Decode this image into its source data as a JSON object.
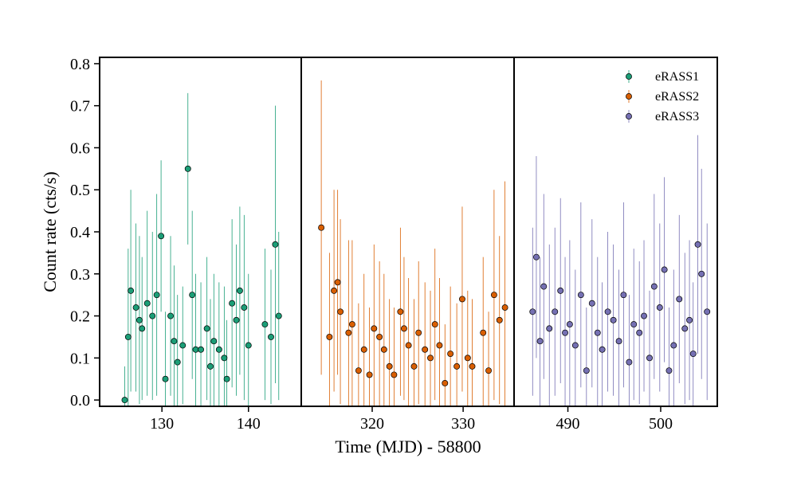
{
  "chart_data": {
    "type": "scatter",
    "xlabel": "Time (MJD) - 58800",
    "ylabel": "Count rate (cts/s)",
    "ylim": [
      -0.015,
      0.815
    ],
    "yticks": [
      0.0,
      0.1,
      0.2,
      0.3,
      0.4,
      0.5,
      0.6,
      0.7,
      0.8
    ],
    "ytick_labels": [
      "0.0",
      "0.1",
      "0.2",
      "0.3",
      "0.4",
      "0.5",
      "0.6",
      "0.7",
      "0.8"
    ],
    "legend_position": "top-right",
    "error_bars": true,
    "panels": [
      {
        "series": "eRASS1",
        "color": "#1b9e77",
        "xlim": [
          122.8,
          146.1
        ],
        "xticks": [
          130,
          140
        ],
        "xtick_labels": [
          "130",
          "140"
        ],
        "x": [
          125.7,
          126.1,
          126.4,
          127.0,
          127.4,
          127.7,
          128.3,
          128.9,
          129.4,
          129.9,
          130.4,
          131.0,
          131.4,
          131.8,
          132.4,
          133.0,
          133.5,
          133.9,
          134.5,
          135.2,
          135.6,
          136.0,
          136.6,
          137.2,
          137.5,
          138.1,
          138.6,
          139.0,
          139.5,
          140.0,
          141.9,
          142.6,
          143.1,
          143.5
        ],
        "y": [
          0.0,
          0.15,
          0.26,
          0.22,
          0.19,
          0.17,
          0.23,
          0.2,
          0.25,
          0.39,
          0.05,
          0.2,
          0.14,
          0.09,
          0.13,
          0.55,
          0.25,
          0.12,
          0.12,
          0.17,
          0.08,
          0.14,
          0.12,
          0.1,
          0.05,
          0.23,
          0.19,
          0.26,
          0.22,
          0.13,
          0.18,
          0.15,
          0.37,
          0.2
        ],
        "yerr": [
          0.08,
          0.21,
          0.24,
          0.2,
          0.2,
          0.17,
          0.22,
          0.2,
          0.24,
          0.18,
          0.16,
          0.19,
          0.18,
          0.16,
          0.14,
          0.18,
          0.2,
          0.18,
          0.16,
          0.17,
          0.16,
          0.16,
          0.16,
          0.17,
          0.14,
          0.2,
          0.18,
          0.2,
          0.22,
          0.17,
          0.18,
          0.16,
          0.33,
          0.2
        ]
      },
      {
        "series": "eRASS2",
        "color": "#d95f02",
        "xlim": [
          312.2,
          335.6
        ],
        "xticks": [
          320,
          330
        ],
        "xtick_labels": [
          "320",
          "330"
        ],
        "x": [
          314.4,
          315.3,
          315.8,
          316.2,
          316.5,
          317.4,
          317.8,
          318.5,
          319.1,
          319.7,
          320.2,
          320.8,
          321.3,
          321.9,
          322.4,
          323.1,
          323.5,
          324.0,
          324.6,
          325.1,
          325.8,
          326.4,
          326.9,
          327.4,
          328.0,
          328.6,
          329.3,
          329.9,
          330.5,
          331.0,
          332.2,
          332.8,
          333.4,
          334.0,
          334.6
        ],
        "y": [
          0.41,
          0.15,
          0.26,
          0.28,
          0.21,
          0.16,
          0.18,
          0.07,
          0.12,
          0.06,
          0.17,
          0.15,
          0.12,
          0.08,
          0.06,
          0.21,
          0.17,
          0.13,
          0.08,
          0.16,
          0.12,
          0.1,
          0.18,
          0.13,
          0.04,
          0.11,
          0.08,
          0.24,
          0.1,
          0.08,
          0.16,
          0.07,
          0.25,
          0.19,
          0.22
        ],
        "yerr": [
          0.35,
          0.2,
          0.24,
          0.22,
          0.22,
          0.22,
          0.2,
          0.16,
          0.18,
          0.16,
          0.2,
          0.18,
          0.18,
          0.16,
          0.16,
          0.2,
          0.17,
          0.16,
          0.16,
          0.17,
          0.16,
          0.16,
          0.18,
          0.16,
          0.14,
          0.16,
          0.15,
          0.22,
          0.16,
          0.16,
          0.18,
          0.14,
          0.25,
          0.2,
          0.3
        ]
      },
      {
        "series": "eRASS3",
        "color": "#7570b3",
        "xlim": [
          484.2,
          506.1
        ],
        "xticks": [
          490,
          500
        ],
        "xtick_labels": [
          "490",
          "500"
        ],
        "x": [
          486.2,
          486.6,
          487.0,
          487.4,
          488.0,
          488.6,
          489.2,
          489.7,
          490.2,
          490.8,
          491.4,
          492.0,
          492.6,
          493.2,
          493.7,
          494.3,
          494.9,
          495.5,
          496.0,
          496.6,
          497.1,
          497.7,
          498.2,
          498.8,
          499.3,
          499.9,
          500.4,
          500.9,
          501.4,
          502.0,
          502.6,
          503.1,
          503.5,
          504.0,
          504.4,
          505.0
        ],
        "y": [
          0.21,
          0.34,
          0.14,
          0.27,
          0.17,
          0.21,
          0.26,
          0.16,
          0.18,
          0.13,
          0.25,
          0.07,
          0.23,
          0.16,
          0.12,
          0.21,
          0.19,
          0.14,
          0.25,
          0.09,
          0.18,
          0.16,
          0.2,
          0.1,
          0.27,
          0.22,
          0.31,
          0.07,
          0.13,
          0.24,
          0.17,
          0.19,
          0.11,
          0.37,
          0.3,
          0.21
        ],
        "yerr": [
          0.2,
          0.24,
          0.2,
          0.22,
          0.2,
          0.2,
          0.22,
          0.18,
          0.2,
          0.18,
          0.22,
          0.15,
          0.2,
          0.18,
          0.16,
          0.19,
          0.18,
          0.17,
          0.22,
          0.16,
          0.18,
          0.17,
          0.18,
          0.16,
          0.22,
          0.2,
          0.22,
          0.15,
          0.18,
          0.2,
          0.18,
          0.19,
          0.17,
          0.26,
          0.25,
          0.21
        ]
      }
    ],
    "legend": [
      {
        "name": "eRASS1",
        "color": "#1b9e77"
      },
      {
        "name": "eRASS2",
        "color": "#d95f02"
      },
      {
        "name": "eRASS3",
        "color": "#7570b3"
      }
    ]
  }
}
